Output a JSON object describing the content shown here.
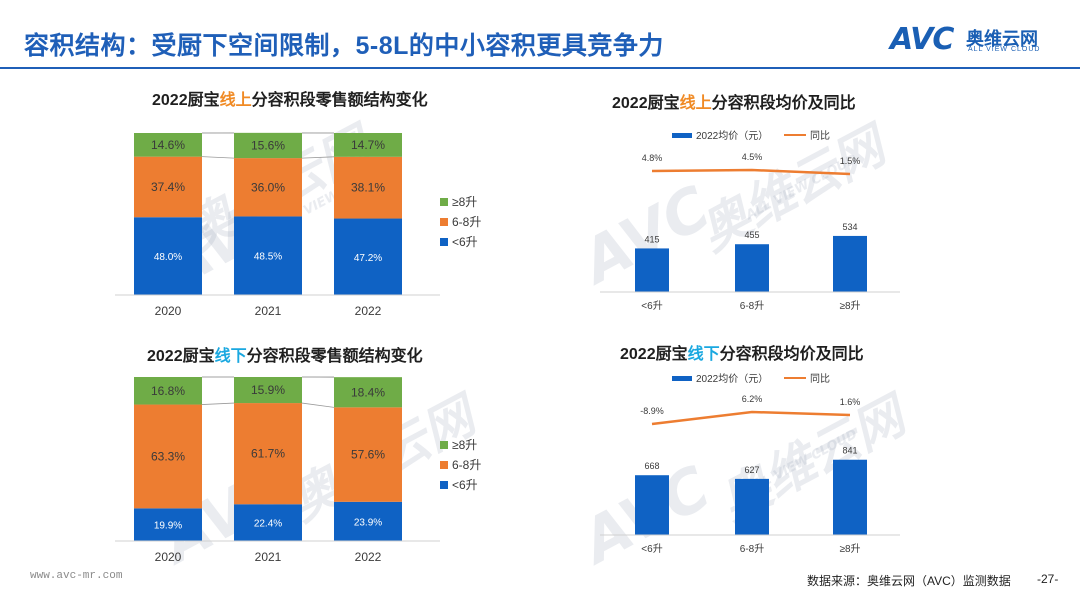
{
  "header": {
    "title": "容积结构：受厨下空间限制，5-8L的中小容积更具竞争力",
    "logo_mark": "AVC",
    "logo_cn": "奥维云网",
    "logo_en": "ALL VIEW CLOUD",
    "watermark_cn": "奥维云网",
    "watermark_en": "ALL VIEW CLOUD"
  },
  "colors": {
    "green": "#6fac47",
    "orange": "#ed7d31",
    "blue": "#0f62c4",
    "title_blue": "#1f5fb8"
  },
  "charts": {
    "c1": {
      "prefix": "2022厨宝",
      "highlight": "线上",
      "suffix": "分容积段零售额结构变化"
    },
    "c2": {
      "prefix": "2022厨宝",
      "highlight": "线上",
      "suffix": "分容积段均价及同比"
    },
    "c3": {
      "prefix": "2022厨宝",
      "highlight": "线下",
      "suffix": "分容积段零售额结构变化"
    },
    "c4": {
      "prefix": "2022厨宝",
      "highlight": "线下",
      "suffix": "分容积段均价及同比"
    }
  },
  "chart_data": [
    {
      "type": "bar",
      "stacked": true,
      "title": "2022厨宝线上分容积段零售额结构变化",
      "categories": [
        "2020",
        "2021",
        "2022"
      ],
      "series": [
        {
          "name": "<6升",
          "values": [
            48.0,
            48.5,
            47.2
          ],
          "labels": [
            "48.0%",
            "48.5%",
            "47.2%"
          ]
        },
        {
          "name": "6-8升",
          "values": [
            37.4,
            36.0,
            38.1
          ],
          "labels": [
            "37.4%",
            "36.0%",
            "38.1%"
          ]
        },
        {
          "name": "≥8升",
          "values": [
            14.6,
            15.6,
            14.7
          ],
          "labels": [
            "14.6%",
            "15.6%",
            "14.7%"
          ]
        }
      ],
      "legend": [
        "≥8升",
        "6-8升",
        "<6升"
      ],
      "ylim": [
        0,
        100
      ]
    },
    {
      "type": "bar",
      "combo_line": true,
      "title": "2022厨宝线上分容积段均价及同比",
      "categories": [
        "<6升",
        "6-8升",
        "≥8升"
      ],
      "series": [
        {
          "name": "2022均价（元）",
          "type": "bar",
          "values": [
            415,
            455,
            534
          ],
          "labels": [
            "415",
            "455",
            "534"
          ]
        },
        {
          "name": "同比",
          "type": "line",
          "values": [
            4.8,
            4.5,
            1.5
          ],
          "labels": [
            "4.8%",
            "4.5%",
            "1.5%"
          ]
        }
      ],
      "legend": [
        "2022均价（元）",
        "同比"
      ]
    },
    {
      "type": "bar",
      "stacked": true,
      "title": "2022厨宝线下分容积段零售额结构变化",
      "categories": [
        "2020",
        "2021",
        "2022"
      ],
      "series": [
        {
          "name": "<6升",
          "values": [
            19.9,
            22.4,
            23.9
          ],
          "labels": [
            "19.9%",
            "22.4%",
            "23.9%"
          ]
        },
        {
          "name": "6-8升",
          "values": [
            63.3,
            61.7,
            57.6
          ],
          "labels": [
            "63.3%",
            "61.7%",
            "57.6%"
          ]
        },
        {
          "name": "≥8升",
          "values": [
            16.8,
            15.9,
            18.4
          ],
          "labels": [
            "16.8%",
            "15.9%",
            "18.4%"
          ]
        }
      ],
      "legend": [
        "≥8升",
        "6-8升",
        "<6升"
      ],
      "ylim": [
        0,
        100
      ]
    },
    {
      "type": "bar",
      "combo_line": true,
      "title": "2022厨宝线下分容积段均价及同比",
      "categories": [
        "<6升",
        "6-8升",
        "≥8升"
      ],
      "series": [
        {
          "name": "2022均价（元）",
          "type": "bar",
          "values": [
            668,
            627,
            841
          ],
          "labels": [
            "668",
            "627",
            "841"
          ]
        },
        {
          "name": "同比",
          "type": "line",
          "values": [
            -8.9,
            6.2,
            1.6
          ],
          "labels": [
            "-8.9%",
            "6.2%",
            "1.6%"
          ]
        }
      ],
      "legend": [
        "2022均价（元）",
        "同比"
      ]
    }
  ],
  "footer": {
    "site": "www.avc-mr.com",
    "source": "数据来源：奥维云网（AVC）监测数据",
    "page": "-27-"
  }
}
